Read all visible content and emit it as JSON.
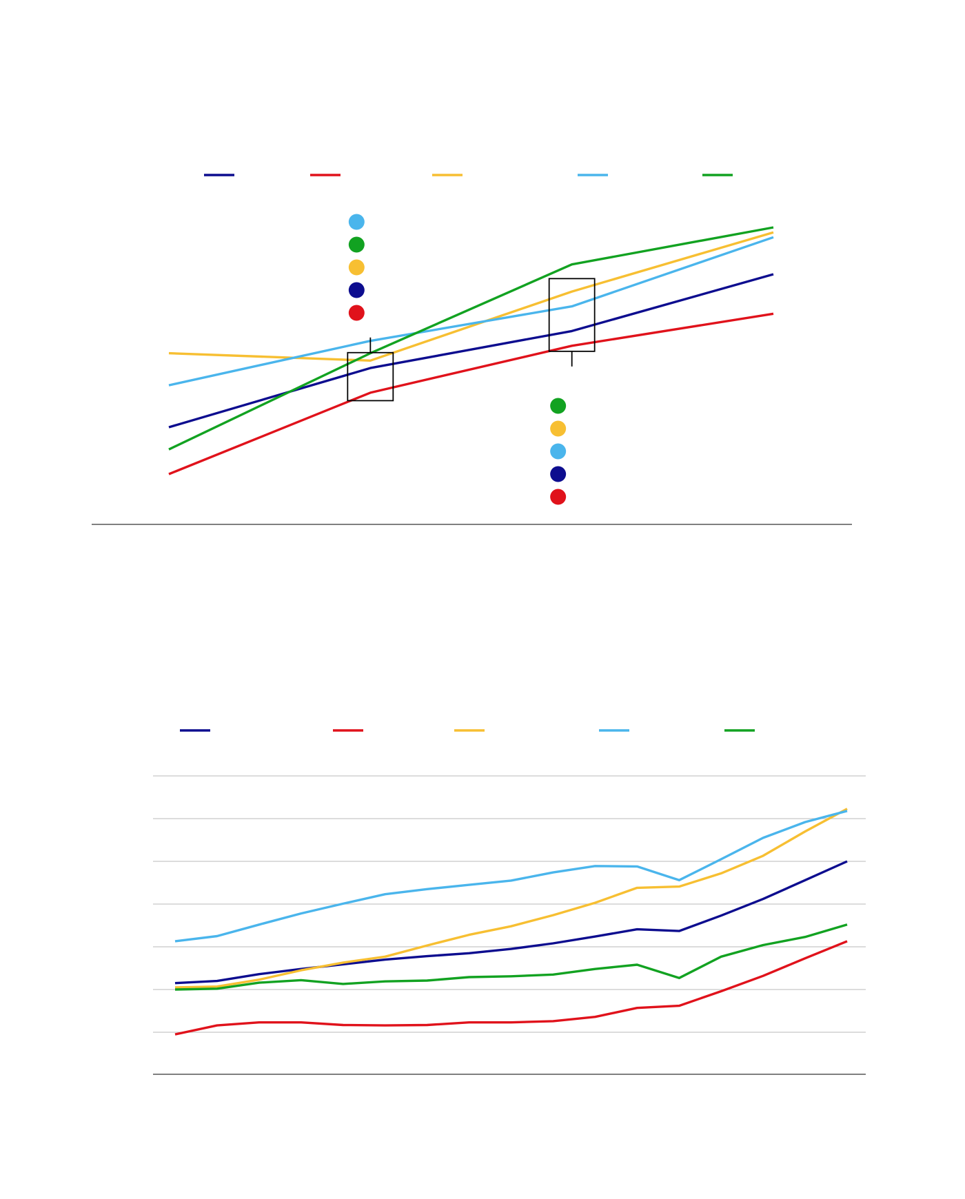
{
  "colors": {
    "navy": "#0d0d8f",
    "red": "#e0121b",
    "yellow": "#f7bf32",
    "light_blue": "#4ab5ec",
    "green": "#12a221"
  },
  "chart_data": [
    {
      "type": "line",
      "title": "",
      "xlabel": "",
      "ylabel": "",
      "x": [
        0,
        1,
        2,
        3
      ],
      "ylim": [
        0,
        100
      ],
      "grid": false,
      "legend": "top",
      "series": [
        {
          "name": "",
          "color": "#0d0d8f",
          "values": [
            19,
            43,
            58,
            81
          ]
        },
        {
          "name": "",
          "color": "#e0121b",
          "values": [
            0,
            33,
            52,
            65
          ]
        },
        {
          "name": "",
          "color": "#f7bf32",
          "values": [
            49,
            46,
            74,
            98
          ]
        },
        {
          "name": "",
          "color": "#4ab5ec",
          "values": [
            36,
            54,
            68,
            96
          ]
        },
        {
          "name": "",
          "color": "#12a221",
          "values": [
            10,
            49,
            85,
            100
          ]
        }
      ],
      "callouts": [
        {
          "x": 1,
          "range": [
            32,
            47
          ],
          "legend_order": [
            "light_blue",
            "green",
            "yellow",
            "navy",
            "red"
          ]
        },
        {
          "x": 2,
          "range": [
            52,
            77
          ],
          "legend_order": [
            "green",
            "yellow",
            "light_blue",
            "navy",
            "red"
          ]
        }
      ]
    },
    {
      "type": "line",
      "title": "",
      "xlabel": "",
      "ylabel": "",
      "x": [
        0,
        1,
        2,
        3,
        4,
        5,
        6,
        7,
        8,
        9,
        10,
        11,
        12,
        13,
        14,
        15,
        16
      ],
      "ylim": [
        0,
        70
      ],
      "grid": true,
      "legend": "top",
      "series": [
        {
          "name": "",
          "color": "#0d0d8f",
          "values": [
            21.5,
            22,
            23.6,
            24.8,
            25.9,
            27,
            27.8,
            28.5,
            29.5,
            30.8,
            32.4,
            34.1,
            33.7,
            37.3,
            41.2,
            45.6,
            50
          ]
        },
        {
          "name": "",
          "color": "#e0121b",
          "values": [
            9.5,
            11.6,
            12.3,
            12.3,
            11.7,
            11.6,
            11.7,
            12.3,
            12.3,
            12.6,
            13.6,
            15.7,
            16.2,
            19.6,
            23.2,
            27.3,
            31.3
          ]
        },
        {
          "name": "",
          "color": "#f7bf32",
          "values": [
            20.5,
            20.7,
            22.3,
            24.5,
            26.3,
            27.7,
            30.3,
            32.8,
            34.8,
            37.4,
            40.3,
            43.8,
            44.1,
            47.2,
            51.3,
            57,
            62.3
          ]
        },
        {
          "name": "",
          "color": "#4ab5ec",
          "values": [
            31.3,
            32.5,
            35.2,
            37.8,
            40.1,
            42.3,
            43.5,
            44.5,
            45.5,
            47.4,
            48.9,
            48.8,
            45.6,
            50.5,
            55.5,
            59.2,
            61.8
          ]
        },
        {
          "name": "",
          "color": "#12a221",
          "values": [
            20,
            20.2,
            21.6,
            22.2,
            21.3,
            21.9,
            22.1,
            22.9,
            23.1,
            23.5,
            24.8,
            25.8,
            22.7,
            27.7,
            30.4,
            32.3,
            35.2
          ]
        }
      ]
    }
  ]
}
